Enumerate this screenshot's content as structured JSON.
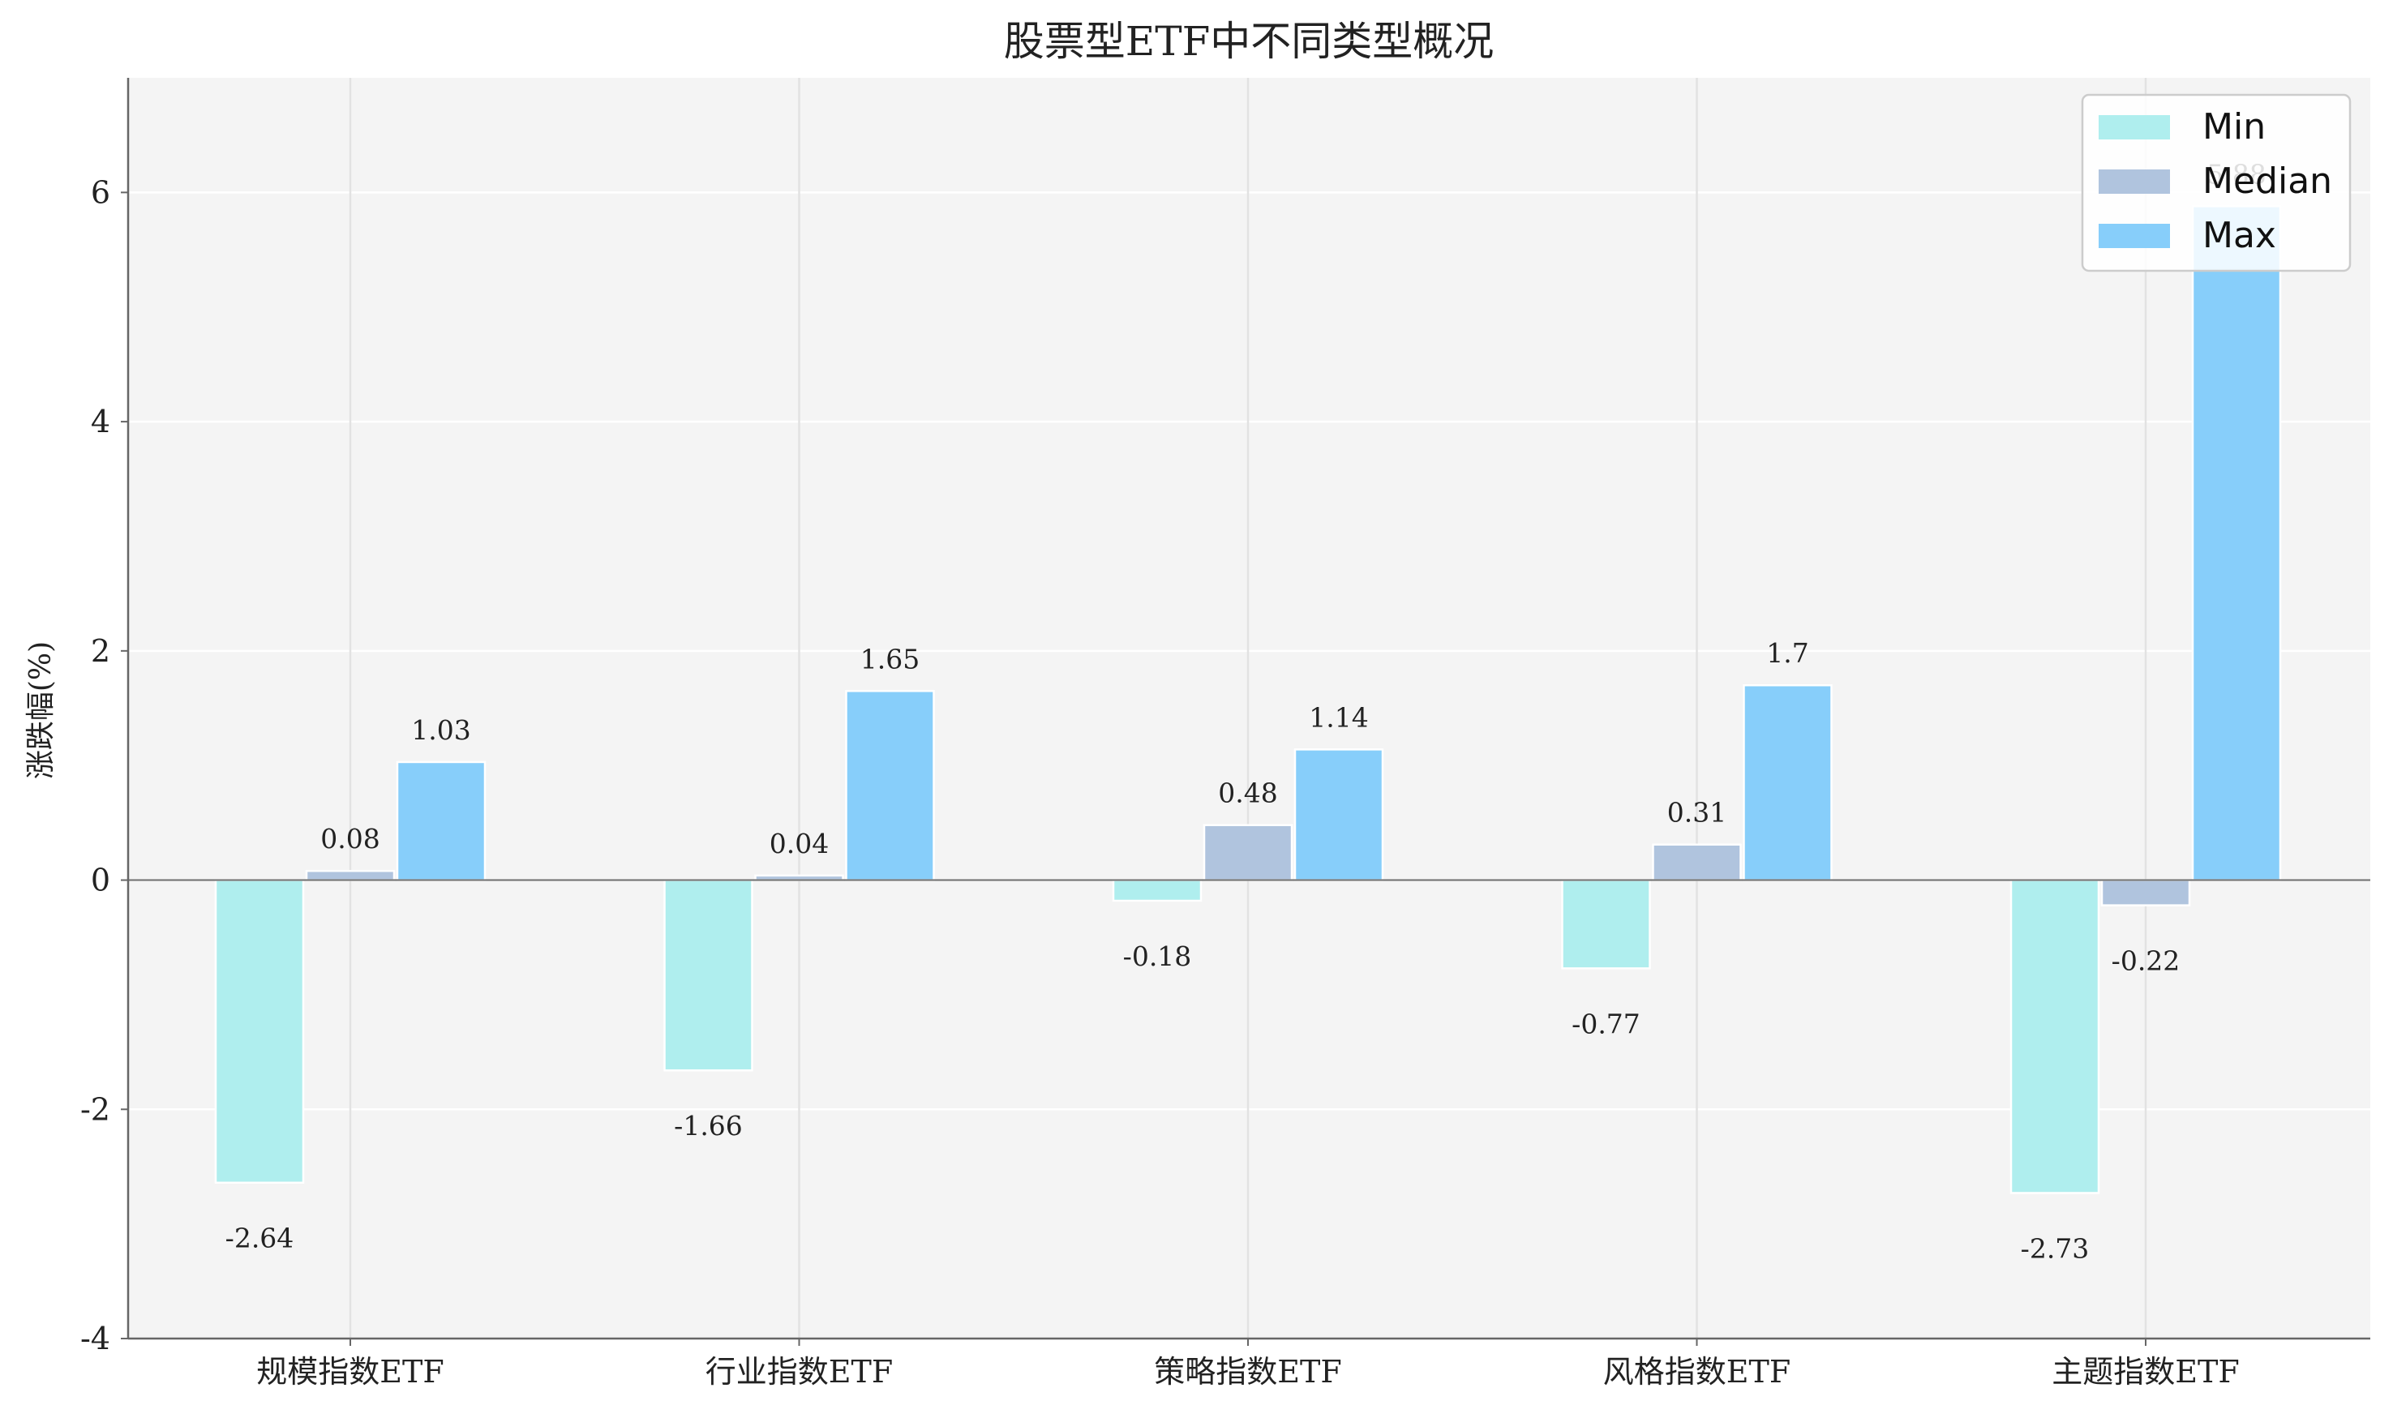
{
  "chart_data": {
    "type": "bar",
    "title": "股票型ETF中不同类型概况",
    "xlabel": "",
    "ylabel": "涨跌幅(%)",
    "ylim": [
      -4,
      7
    ],
    "yticks": [
      -4,
      -2,
      0,
      2,
      4,
      6
    ],
    "categories": [
      "规模指数ETF",
      "行业指数ETF",
      "策略指数ETF",
      "风格指数ETF",
      "主题指数ETF"
    ],
    "series": [
      {
        "name": "Min",
        "color": "#AFEEEE",
        "values": [
          -2.64,
          -1.66,
          -0.18,
          -0.77,
          -2.73
        ],
        "labels": [
          "-2.64",
          "-1.66",
          "-0.18",
          "-0.77",
          "-2.73"
        ]
      },
      {
        "name": "Median",
        "color": "#B0C4DE",
        "values": [
          0.08,
          0.04,
          0.48,
          0.31,
          -0.22
        ],
        "labels": [
          "0.08",
          "0.04",
          "0.48",
          "0.31",
          "-0.22"
        ]
      },
      {
        "name": "Max",
        "color": "#87CEFA",
        "values": [
          1.03,
          1.65,
          1.14,
          1.7,
          5.88
        ],
        "labels": [
          "1.03",
          "1.65",
          "1.14",
          "1.7",
          "5.88"
        ]
      }
    ],
    "grid": true,
    "legend": "top-right"
  }
}
